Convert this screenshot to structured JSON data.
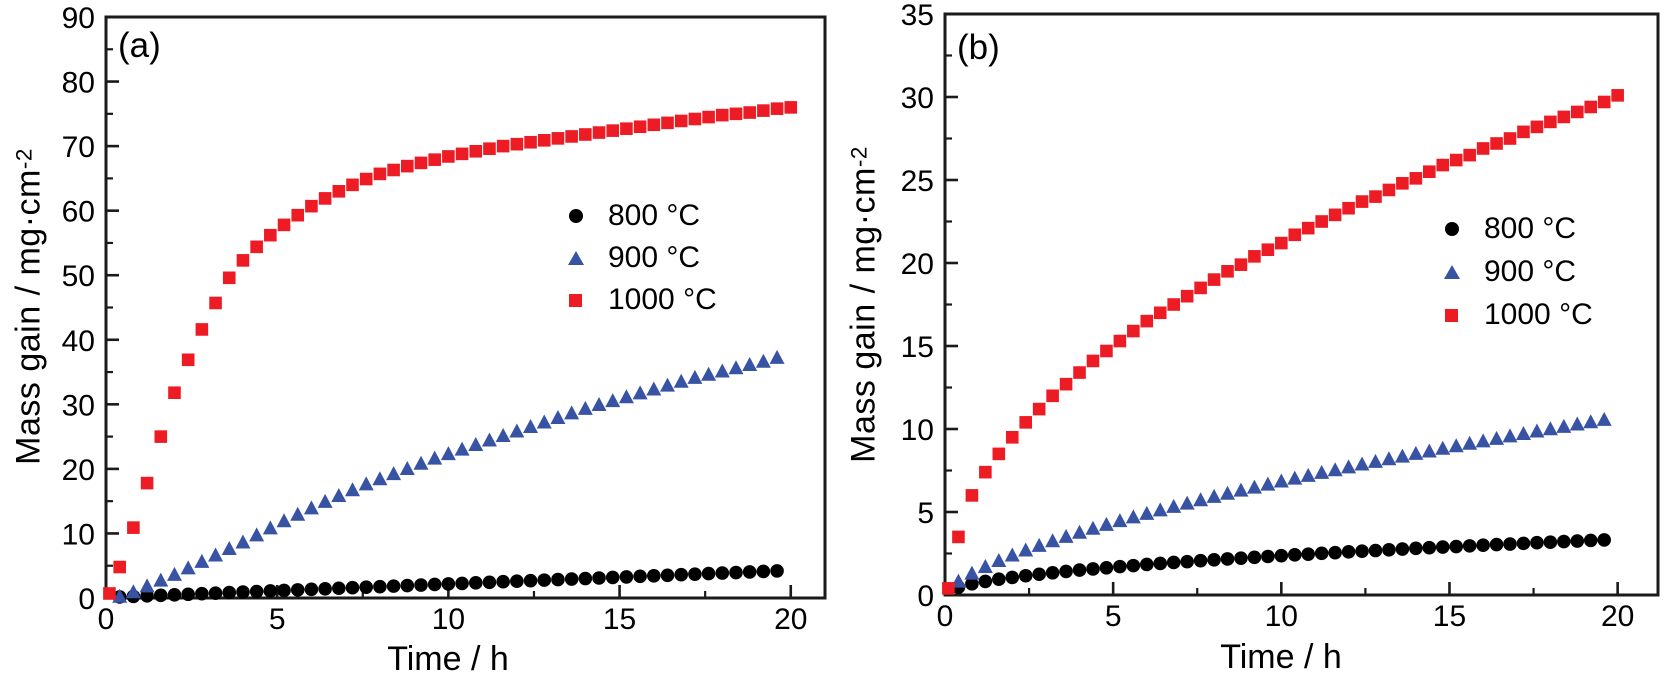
{
  "figure_background": "#ffffff",
  "axis_color": "#1a1a1a",
  "chart_data": [
    {
      "panel": "(a)",
      "type": "scatter",
      "title": "",
      "xlabel": "Time / h",
      "ylabel": "Mass gain / mg·cm⁻²",
      "ylabel_parts": {
        "base": "Mass gain / mg·cm",
        "sup": "-2"
      },
      "xlim": [
        0,
        21.0
      ],
      "ylim": [
        0,
        90
      ],
      "xticks": [
        0,
        5,
        10,
        15,
        20
      ],
      "xminor_step": 2.5,
      "yticks": [
        0,
        10,
        20,
        30,
        40,
        50,
        60,
        70,
        80,
        90
      ],
      "yminor_step": 5,
      "grid": false,
      "legend_position": "upper-right-inside",
      "x_default": [
        0.4,
        0.8,
        1.2,
        1.6,
        2.0,
        2.4,
        2.8,
        3.2,
        3.6,
        4.0,
        4.4,
        4.8,
        5.2,
        5.6,
        6.0,
        6.4,
        6.8,
        7.2,
        7.6,
        8.0,
        8.4,
        8.8,
        9.2,
        9.6,
        10.0,
        10.4,
        10.8,
        11.2,
        11.6,
        12.0,
        12.4,
        12.8,
        13.2,
        13.6,
        14.0,
        14.4,
        14.8,
        15.2,
        15.6,
        16.0,
        16.4,
        16.8,
        17.2,
        17.6,
        18.0,
        18.4,
        18.8,
        19.2,
        19.6
      ],
      "series": [
        {
          "name": "800 °C",
          "marker": "circle",
          "color": "#000000",
          "y": [
            0.16,
            0.25,
            0.33,
            0.42,
            0.5,
            0.58,
            0.67,
            0.75,
            0.84,
            0.92,
            1.0,
            1.09,
            1.17,
            1.26,
            1.34,
            1.42,
            1.51,
            1.59,
            1.68,
            1.76,
            1.84,
            1.93,
            2.01,
            2.1,
            2.18,
            2.26,
            2.35,
            2.43,
            2.52,
            2.6,
            2.68,
            2.77,
            2.85,
            2.94,
            3.02,
            3.1,
            3.19,
            3.27,
            3.36,
            3.44,
            3.52,
            3.61,
            3.69,
            3.78,
            3.86,
            3.94,
            4.03,
            4.11,
            4.2
          ]
        },
        {
          "name": "900 °C",
          "marker": "triangle",
          "color": "#3953a4",
          "y": [
            0.3,
            1.0,
            1.9,
            2.8,
            3.7,
            4.7,
            5.7,
            6.7,
            7.7,
            8.7,
            9.8,
            10.9,
            12.0,
            13.0,
            14.0,
            15.0,
            15.9,
            16.8,
            17.7,
            18.5,
            19.3,
            20.1,
            20.9,
            21.7,
            22.4,
            23.1,
            23.8,
            24.5,
            25.2,
            25.9,
            26.6,
            27.3,
            28.0,
            28.7,
            29.4,
            30.0,
            30.6,
            31.2,
            31.8,
            32.4,
            33.0,
            33.6,
            34.2,
            34.7,
            35.2,
            35.7,
            36.2,
            36.7,
            37.3
          ]
        },
        {
          "name": "1000 °C",
          "marker": "square",
          "color": "#ed1c24",
          "x": [
            0.1,
            0.4,
            0.8,
            1.2,
            1.6,
            2.0,
            2.4,
            2.8,
            3.2,
            3.6,
            4.0,
            4.4,
            4.8,
            5.2,
            5.6,
            6.0,
            6.4,
            6.8,
            7.2,
            7.6,
            8.0,
            8.4,
            8.8,
            9.2,
            9.6,
            10.0,
            10.4,
            10.8,
            11.2,
            11.6,
            12.0,
            12.4,
            12.8,
            13.2,
            13.6,
            14.0,
            14.4,
            14.8,
            15.2,
            15.6,
            16.0,
            16.4,
            16.8,
            17.2,
            17.6,
            18.0,
            18.4,
            18.8,
            19.2,
            19.6,
            20.0
          ],
          "y": [
            0.7,
            4.8,
            10.9,
            17.8,
            25.0,
            31.8,
            36.9,
            41.6,
            45.7,
            49.6,
            52.3,
            54.4,
            56.2,
            57.8,
            59.3,
            60.7,
            61.9,
            63.0,
            64.0,
            64.9,
            65.7,
            66.3,
            66.9,
            67.4,
            67.9,
            68.4,
            68.8,
            69.2,
            69.6,
            70.0,
            70.3,
            70.6,
            70.9,
            71.2,
            71.5,
            71.8,
            72.1,
            72.4,
            72.7,
            73.0,
            73.3,
            73.6,
            73.9,
            74.2,
            74.5,
            74.8,
            75.0,
            75.2,
            75.5,
            75.8,
            76.0
          ]
        }
      ]
    },
    {
      "panel": "(b)",
      "type": "scatter",
      "title": "",
      "xlabel": "Time / h",
      "ylabel": "Mass gain / mg·cm⁻²",
      "ylabel_parts": {
        "base": "Mass gain / mg·cm",
        "sup": "-2"
      },
      "xlim": [
        0,
        21.2
      ],
      "ylim": [
        0,
        35
      ],
      "xticks": [
        0,
        5,
        10,
        15,
        20
      ],
      "xminor_step": 2.5,
      "yticks": [
        0,
        5,
        10,
        15,
        20,
        25,
        30,
        35
      ],
      "yminor_step": 2.5,
      "grid": false,
      "legend_position": "upper-right-inside",
      "x_default": [
        0.4,
        0.8,
        1.2,
        1.6,
        2.0,
        2.4,
        2.8,
        3.2,
        3.6,
        4.0,
        4.4,
        4.8,
        5.2,
        5.6,
        6.0,
        6.4,
        6.8,
        7.2,
        7.6,
        8.0,
        8.4,
        8.8,
        9.2,
        9.6,
        10.0,
        10.4,
        10.8,
        11.2,
        11.6,
        12.0,
        12.4,
        12.8,
        13.2,
        13.6,
        14.0,
        14.4,
        14.8,
        15.2,
        15.6,
        16.0,
        16.4,
        16.8,
        17.2,
        17.6,
        18.0,
        18.4,
        18.8,
        19.2,
        19.6
      ],
      "series": [
        {
          "name": "800 °C",
          "marker": "circle",
          "color": "#000000",
          "y": [
            0.47,
            0.67,
            0.82,
            0.95,
            1.06,
            1.16,
            1.25,
            1.34,
            1.42,
            1.5,
            1.57,
            1.64,
            1.71,
            1.77,
            1.84,
            1.9,
            1.96,
            2.01,
            2.07,
            2.12,
            2.17,
            2.22,
            2.27,
            2.32,
            2.37,
            2.42,
            2.46,
            2.51,
            2.55,
            2.6,
            2.64,
            2.68,
            2.72,
            2.77,
            2.81,
            2.85,
            2.89,
            2.92,
            2.96,
            3.0,
            3.04,
            3.07,
            3.11,
            3.15,
            3.18,
            3.22,
            3.25,
            3.29,
            3.32
          ]
        },
        {
          "name": "900 °C",
          "marker": "triangle",
          "color": "#3953a4",
          "y": [
            0.85,
            1.33,
            1.73,
            2.09,
            2.42,
            2.72,
            3.0,
            3.28,
            3.54,
            3.79,
            4.03,
            4.27,
            4.49,
            4.72,
            4.93,
            5.14,
            5.35,
            5.55,
            5.75,
            5.95,
            6.14,
            6.33,
            6.51,
            6.69,
            6.88,
            7.05,
            7.22,
            7.4,
            7.56,
            7.73,
            7.9,
            8.06,
            8.22,
            8.38,
            8.54,
            8.69,
            8.85,
            9.0,
            9.15,
            9.3,
            9.45,
            9.6,
            9.74,
            9.89,
            10.03,
            10.17,
            10.31,
            10.45,
            10.59
          ]
        },
        {
          "name": "1000 °C",
          "marker": "square",
          "color": "#ed1c24",
          "x": [
            0.1,
            0.4,
            0.8,
            1.2,
            1.6,
            2.0,
            2.4,
            2.8,
            3.2,
            3.6,
            4.0,
            4.4,
            4.8,
            5.2,
            5.6,
            6.0,
            6.4,
            6.8,
            7.2,
            7.6,
            8.0,
            8.4,
            8.8,
            9.2,
            9.6,
            10.0,
            10.4,
            10.8,
            11.2,
            11.6,
            12.0,
            12.4,
            12.8,
            13.2,
            13.6,
            14.0,
            14.4,
            14.8,
            15.2,
            15.6,
            16.0,
            16.4,
            16.8,
            17.2,
            17.6,
            18.0,
            18.4,
            18.8,
            19.2,
            19.6,
            20.0
          ],
          "y": [
            0.4,
            3.5,
            6.0,
            7.4,
            8.5,
            9.5,
            10.4,
            11.2,
            12.0,
            12.7,
            13.4,
            14.1,
            14.7,
            15.3,
            15.9,
            16.5,
            17.0,
            17.5,
            18.0,
            18.5,
            19.0,
            19.5,
            19.9,
            20.4,
            20.8,
            21.2,
            21.7,
            22.1,
            22.5,
            22.9,
            23.3,
            23.7,
            24.0,
            24.4,
            24.8,
            25.1,
            25.5,
            25.9,
            26.2,
            26.5,
            26.9,
            27.2,
            27.5,
            27.9,
            28.2,
            28.5,
            28.8,
            29.1,
            29.4,
            29.7,
            30.1
          ]
        }
      ]
    }
  ]
}
